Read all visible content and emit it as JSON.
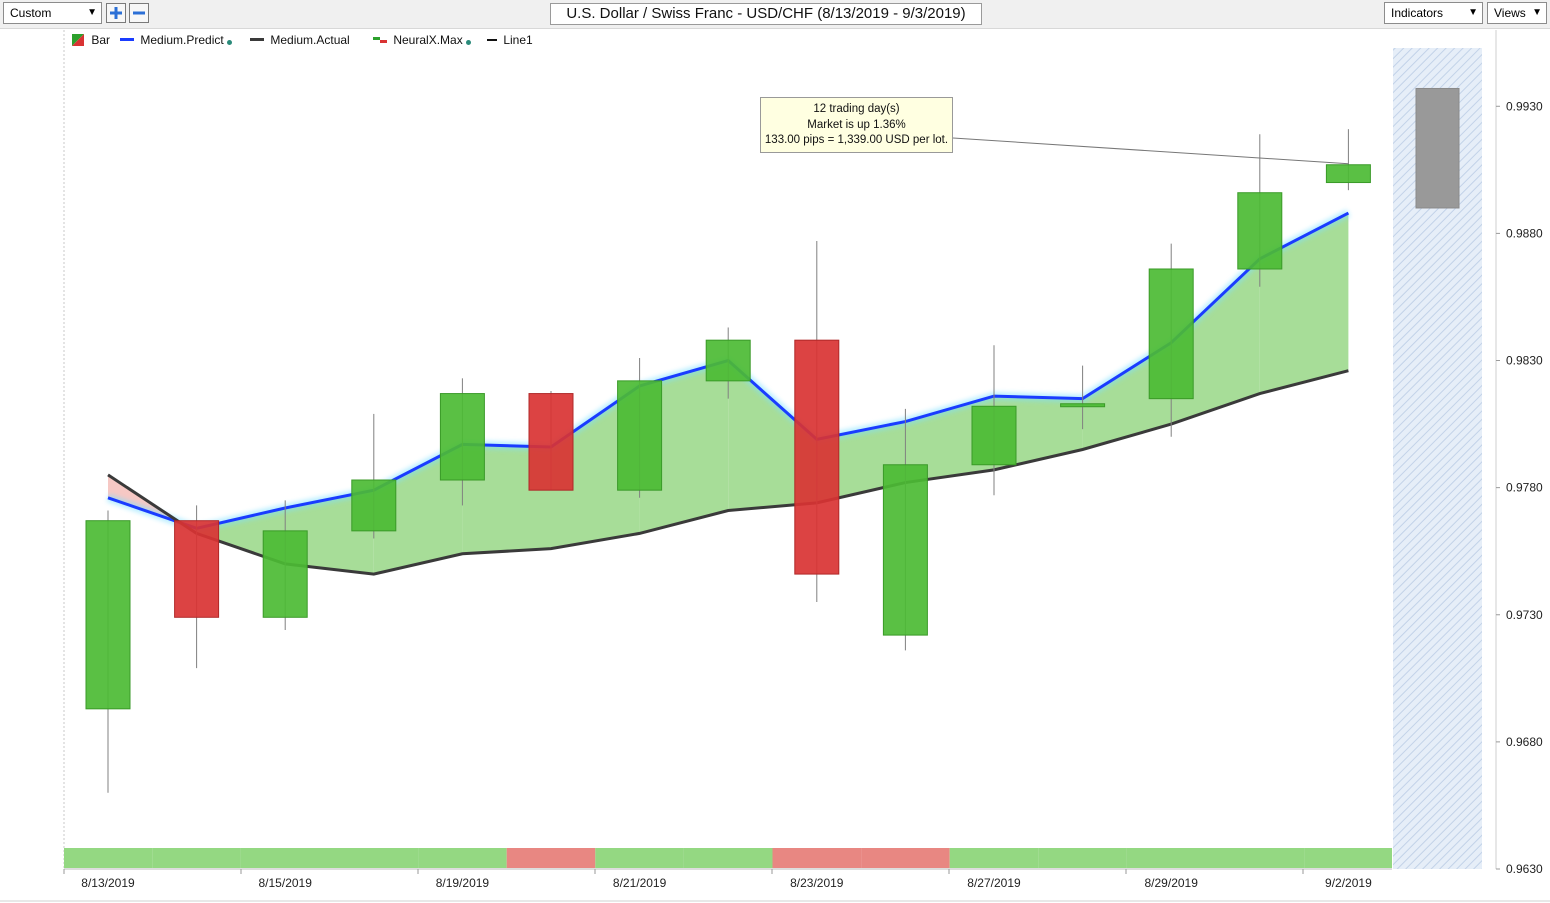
{
  "toolbar": {
    "preset": "Custom",
    "title": "U.S. Dollar / Swiss Franc - USD/CHF (8/13/2019 - 9/3/2019)",
    "indicators_label": "Indicators",
    "views_label": "Views",
    "zoom_in_icon": "plus-icon",
    "zoom_out_icon": "minus-icon"
  },
  "legend": [
    {
      "label": "Bar",
      "icon": "bar-swatch",
      "color": "#2ca02c"
    },
    {
      "label": "Medium.Predict",
      "icon": "line-swatch",
      "color": "#1a3cff"
    },
    {
      "label": "Medium.Actual",
      "icon": "line-swatch",
      "color": "#3a3a3a"
    },
    {
      "label": "NeuralX.Max",
      "icon": "neural-swatch",
      "color": "#2ca02c"
    },
    {
      "label": "Line1",
      "icon": "line-swatch",
      "color": "#111111"
    }
  ],
  "tooltip": {
    "line1": "12 trading day(s)",
    "line2": "Market is up 1.36%",
    "line3": "133.00 pips = 1,339.00 USD per lot."
  },
  "colors": {
    "up": "#4cbb34",
    "down": "#d93333",
    "predict": "#1a3cff",
    "actual": "#3a3a3a",
    "band_up": "#a7dd98",
    "band_down": "#f6c8c4",
    "strip_up": "#94d882",
    "strip_down": "#e88782"
  },
  "chart_data": {
    "type": "candlestick",
    "ylim": [
      0.963,
      0.996
    ],
    "y_ticks": [
      "0.9930",
      "0.9880",
      "0.9830",
      "0.9780",
      "0.9730",
      "0.9680",
      "0.9630"
    ],
    "x_tick_labels": [
      {
        "index": 0,
        "label": "8/13/2019"
      },
      {
        "index": 2,
        "label": "8/15/2019"
      },
      {
        "index": 4,
        "label": "8/19/2019"
      },
      {
        "index": 6,
        "label": "8/21/2019"
      },
      {
        "index": 8,
        "label": "8/23/2019"
      },
      {
        "index": 10,
        "label": "8/27/2019"
      },
      {
        "index": 12,
        "label": "8/29/2019"
      },
      {
        "index": 14,
        "label": "9/2/2019"
      }
    ],
    "candles": [
      {
        "open": 0.9693,
        "high": 0.9771,
        "low": 0.966,
        "close": 0.9767
      },
      {
        "open": 0.9767,
        "high": 0.9773,
        "low": 0.9709,
        "close": 0.9729
      },
      {
        "open": 0.9729,
        "high": 0.9775,
        "low": 0.9724,
        "close": 0.9763
      },
      {
        "open": 0.9763,
        "high": 0.9809,
        "low": 0.976,
        "close": 0.9783
      },
      {
        "open": 0.9783,
        "high": 0.9823,
        "low": 0.9773,
        "close": 0.9817
      },
      {
        "open": 0.9817,
        "high": 0.9818,
        "low": 0.9779,
        "close": 0.9779
      },
      {
        "open": 0.9779,
        "high": 0.9831,
        "low": 0.9776,
        "close": 0.9822
      },
      {
        "open": 0.9822,
        "high": 0.9843,
        "low": 0.9815,
        "close": 0.9838
      },
      {
        "open": 0.9838,
        "high": 0.9877,
        "low": 0.9735,
        "close": 0.9746
      },
      {
        "open": 0.9722,
        "high": 0.9811,
        "low": 0.9716,
        "close": 0.9789
      },
      {
        "open": 0.9789,
        "high": 0.9836,
        "low": 0.9777,
        "close": 0.9812
      },
      {
        "open": 0.9812,
        "high": 0.9828,
        "low": 0.9803,
        "close": 0.9813
      },
      {
        "open": 0.9815,
        "high": 0.9876,
        "low": 0.98,
        "close": 0.9866
      },
      {
        "open": 0.9866,
        "high": 0.9919,
        "low": 0.9859,
        "close": 0.9896
      },
      {
        "open": 0.99,
        "high": 0.9921,
        "low": 0.9897,
        "close": 0.9907
      }
    ],
    "series": [
      {
        "name": "Medium.Predict",
        "values": [
          0.9776,
          0.9764,
          0.9772,
          0.9779,
          0.9797,
          0.9796,
          0.982,
          0.983,
          0.9799,
          0.9806,
          0.9816,
          0.9815,
          0.9837,
          0.987,
          0.9888
        ]
      },
      {
        "name": "Medium.Actual",
        "values": [
          0.9785,
          0.9762,
          0.975,
          0.9746,
          0.9754,
          0.9756,
          0.9762,
          0.9771,
          0.9774,
          0.9782,
          0.9787,
          0.9795,
          0.9805,
          0.9817,
          0.9826
        ]
      }
    ],
    "neuralx_max_bar": {
      "open": 0.989,
      "close": 0.9937
    },
    "trend_strip": [
      "up",
      "up",
      "up",
      "up",
      "up",
      "down",
      "up",
      "up",
      "down",
      "down",
      "up",
      "up",
      "up",
      "up",
      "up"
    ],
    "grid": false,
    "legend_position": "top-left"
  }
}
